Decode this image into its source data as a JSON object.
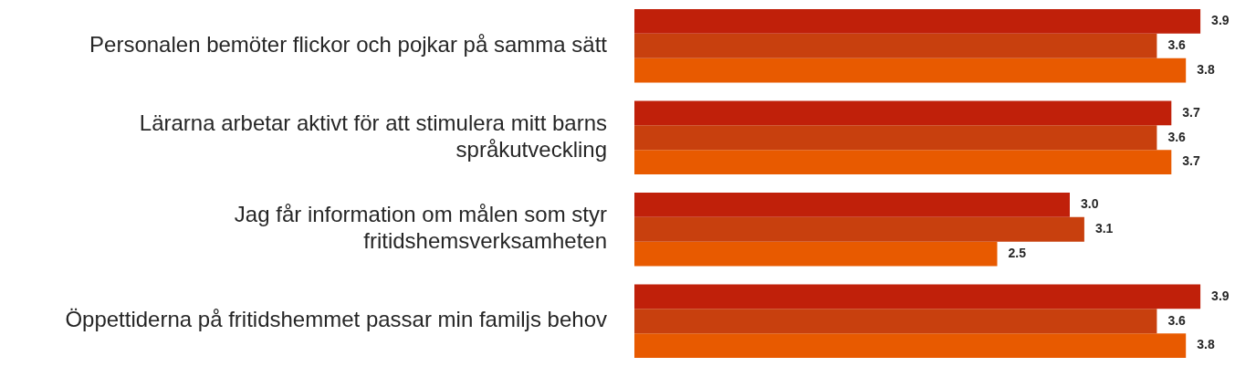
{
  "chart_data": {
    "type": "bar",
    "orientation": "horizontal",
    "categories": [
      "Personalen bemöter flickor och pojkar på samma sätt",
      "Lärarna arbetar aktivt för att stimulera mitt barns språkutveckling",
      "Jag får information om målen som styr fritidshemsverksamheten",
      "Öppettiderna på fritidshemmet passar min familjs behov"
    ],
    "series": [
      {
        "color": "#c0200a",
        "values": [
          3.9,
          3.7,
          3.0,
          3.9
        ],
        "value_labels": [
          "3.9",
          "3.7",
          "3.0",
          "3.9"
        ]
      },
      {
        "color": "#c8400e",
        "values": [
          3.6,
          3.6,
          3.1,
          3.6
        ],
        "value_labels": [
          "3.6",
          "3.6",
          "3.1",
          "3.6"
        ]
      },
      {
        "color": "#e85a00",
        "values": [
          3.8,
          3.7,
          2.5,
          3.8
        ],
        "value_labels": [
          "3.8",
          "3.7",
          "2.5",
          "3.8"
        ]
      }
    ],
    "tick_labels": "y"
  }
}
